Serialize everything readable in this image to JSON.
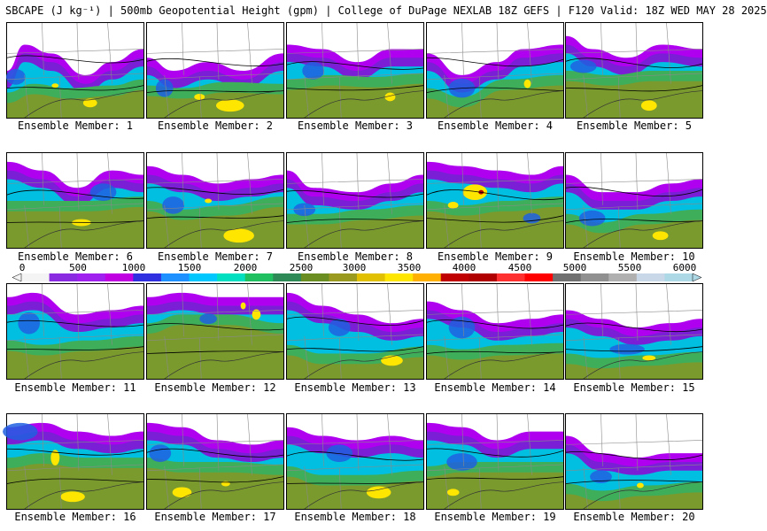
{
  "header": {
    "title": "SBCAPE (J kg⁻¹) | 500mb Geopotential Height (gpm) | College of DuPage NEXLAB 18Z GEFS | F120 Valid: 18Z WED MAY 28 2025"
  },
  "colorbar": {
    "ticks": [
      "0",
      "500",
      "1000",
      "1500",
      "2000",
      "2500",
      "3000",
      "3500",
      "4000",
      "4500",
      "5000",
      "5500",
      "6000"
    ],
    "colors": [
      "#f4f4f4",
      "#8a2be2",
      "#a020f0",
      "#c000e0",
      "#3030e0",
      "#1e90ff",
      "#00c8ff",
      "#00e0c0",
      "#20c060",
      "#2e8b57",
      "#6b8e23",
      "#9a9a20",
      "#e0c000",
      "#ffe600",
      "#ffb000",
      "#c00000",
      "#b00000",
      "#ff3030",
      "#ff0000",
      "#707070",
      "#909090",
      "#b0b0b0",
      "#c8d8e8",
      "#add8e6"
    ]
  },
  "panels": [
    {
      "label": "Ensemble Member: 1"
    },
    {
      "label": "Ensemble Member: 2"
    },
    {
      "label": "Ensemble Member: 3"
    },
    {
      "label": "Ensemble Member: 4"
    },
    {
      "label": "Ensemble Member: 5"
    },
    {
      "label": "Ensemble Member: 6"
    },
    {
      "label": "Ensemble Member: 7"
    },
    {
      "label": "Ensemble Member: 8"
    },
    {
      "label": "Ensemble Member: 9"
    },
    {
      "label": "Ensemble Member: 10"
    },
    {
      "label": "Ensemble Member: 11"
    },
    {
      "label": "Ensemble Member: 12"
    },
    {
      "label": "Ensemble Member: 13"
    },
    {
      "label": "Ensemble Member: 14"
    },
    {
      "label": "Ensemble Member: 15"
    },
    {
      "label": "Ensemble Member: 16"
    },
    {
      "label": "Ensemble Member: 17"
    },
    {
      "label": "Ensemble Member: 18"
    },
    {
      "label": "Ensemble Member: 19"
    },
    {
      "label": "Ensemble Member: 20"
    }
  ]
}
